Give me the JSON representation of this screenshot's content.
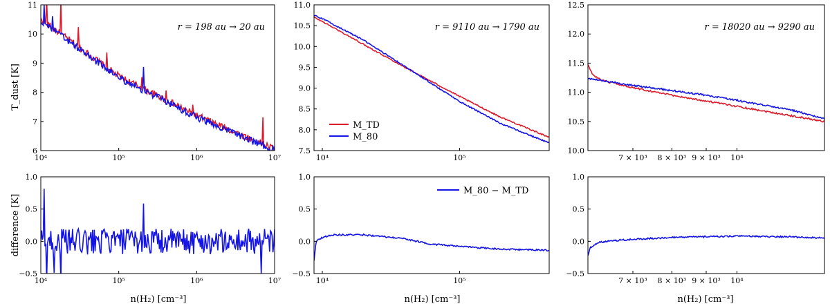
{
  "figure": {
    "ylabel_top": "T_dust [K]",
    "ylabel_bottom": "difference [K]",
    "xlabel": "n(H₂) [cm⁻³]",
    "colors": {
      "M_TD": "#dc1c2c",
      "M_80": "#1414e6"
    },
    "legend_top": [
      "M_TD",
      "M_80"
    ],
    "legend_bottom": [
      "M_80 − M_TD"
    ]
  },
  "chart_data": [
    {
      "type": "line",
      "panel": "top-left",
      "annotation": "r = 198 au → 20 au",
      "xscale": "log",
      "xlim": [
        10000,
        10000000
      ],
      "ylim": [
        6,
        11
      ],
      "xticks": [
        "10⁴",
        "10⁵",
        "10⁶",
        "10⁷"
      ],
      "yticks": [
        "6",
        "7",
        "8",
        "9",
        "10",
        "11"
      ],
      "series": [
        {
          "name": "M_TD",
          "trend": {
            "x": [
              10000,
              100000,
              1000000,
              10000000
            ],
            "y": [
              10.5,
              8.55,
              7.2,
              6.05
            ]
          },
          "noise": 0.12,
          "spikes": [
            {
              "x": 12000,
              "dy": 0.8
            },
            {
              "x": 18000,
              "dy": 1.2
            },
            {
              "x": 30000,
              "dy": 0.6
            },
            {
              "x": 70000,
              "dy": 0.4
            },
            {
              "x": 200000,
              "dy": 0.45
            },
            {
              "x": 400000,
              "dy": 0.3
            },
            {
              "x": 900000,
              "dy": 0.35
            },
            {
              "x": 7000000,
              "dy": 0.85
            }
          ]
        },
        {
          "name": "M_80",
          "trend": {
            "x": [
              10000,
              100000,
              1000000,
              10000000
            ],
            "y": [
              10.45,
              8.5,
              7.15,
              6.0
            ]
          },
          "noise": 0.12,
          "spikes": [
            {
              "x": 11000,
              "dy": 0.7
            },
            {
              "x": 14000,
              "dy": 0.5
            },
            {
              "x": 210000,
              "dy": 0.75
            }
          ]
        }
      ]
    },
    {
      "type": "line",
      "panel": "top-middle",
      "annotation": "r = 9110 au → 1790 au",
      "xscale": "log",
      "xlim": [
        8700,
        450000
      ],
      "ylim": [
        7.5,
        11.0
      ],
      "xticks": [
        "10⁴",
        "10⁵"
      ],
      "yticks": [
        "7.5",
        "8.0",
        "8.5",
        "9.0",
        "9.5",
        "10.0",
        "10.5",
        "11.0"
      ],
      "series": [
        {
          "name": "M_TD",
          "trend": {
            "x": [
              8700,
              10000,
              20000,
              40000,
              100000,
              200000,
              450000
            ],
            "y": [
              10.7,
              10.6,
              10.05,
              9.5,
              8.8,
              8.3,
              7.82
            ]
          },
          "noise": 0.015
        },
        {
          "name": "M_80",
          "trend": {
            "x": [
              8700,
              10000,
              20000,
              40000,
              100000,
              200000,
              450000
            ],
            "y": [
              10.75,
              10.67,
              10.15,
              9.52,
              8.68,
              8.15,
              7.68
            ]
          },
          "noise": 0.015
        }
      ]
    },
    {
      "type": "line",
      "panel": "top-right",
      "annotation": "r = 18020 au → 9290 au",
      "xscale": "log",
      "xlim": [
        6000,
        13500
      ],
      "ylim": [
        10.0,
        12.5
      ],
      "xticks": [
        "7 × 10³",
        "8 × 10³",
        "9 × 10³",
        "10⁴"
      ],
      "yticks": [
        "10.0",
        "10.5",
        "11.0",
        "11.5",
        "12.0",
        "12.5"
      ],
      "series": [
        {
          "name": "M_TD",
          "trend": {
            "x": [
              6000,
              6100,
              6300,
              7000,
              8000,
              9000,
              10000,
              12000,
              13500
            ],
            "y": [
              11.47,
              11.3,
              11.2,
              11.08,
              10.95,
              10.85,
              10.76,
              10.6,
              10.5
            ]
          },
          "noise": 0.015
        },
        {
          "name": "M_80",
          "trend": {
            "x": [
              6000,
              6300,
              7000,
              8000,
              9000,
              10000,
              12000,
              13500
            ],
            "y": [
              11.24,
              11.2,
              11.12,
              11.03,
              10.95,
              10.86,
              10.7,
              10.55
            ]
          },
          "noise": 0.015
        }
      ]
    },
    {
      "type": "line",
      "panel": "bottom-left",
      "xscale": "log",
      "xlim": [
        10000,
        10000000
      ],
      "ylim": [
        -0.5,
        1.0
      ],
      "xticks": [
        "10⁴",
        "10⁵",
        "10⁶",
        "10⁷"
      ],
      "yticks": [
        "−0.5",
        "0.0",
        "0.5",
        "1.0"
      ],
      "series": [
        {
          "name": "M_80 − M_TD",
          "trend": {
            "x": [
              10000,
              10000000
            ],
            "y": [
              0.0,
              0.0
            ]
          },
          "noise": 0.2,
          "spikes": [
            {
              "x": 11000,
              "dy": 1.0
            },
            {
              "x": 12000,
              "dy": -0.55
            },
            {
              "x": 15000,
              "dy": -0.5
            },
            {
              "x": 18000,
              "dy": -0.55
            },
            {
              "x": 40000,
              "dy": -0.35
            },
            {
              "x": 210000,
              "dy": 0.65
            },
            {
              "x": 6800000,
              "dy": -0.5
            }
          ]
        }
      ]
    },
    {
      "type": "line",
      "panel": "bottom-middle",
      "xscale": "log",
      "xlim": [
        8700,
        450000
      ],
      "ylim": [
        -0.5,
        1.0
      ],
      "xticks": [
        "10⁴",
        "10⁵"
      ],
      "yticks": [
        "−0.5",
        "0.0",
        "0.5",
        "1.0"
      ],
      "series": [
        {
          "name": "M_80 − M_TD",
          "trend": {
            "x": [
              8700,
              9000,
              10000,
              12000,
              20000,
              40000,
              60000,
              100000,
              200000,
              450000
            ],
            "y": [
              -0.3,
              0.0,
              0.06,
              0.1,
              0.1,
              0.04,
              -0.04,
              -0.08,
              -0.12,
              -0.14
            ]
          },
          "noise": 0.012
        }
      ]
    },
    {
      "type": "line",
      "panel": "bottom-right",
      "xscale": "log",
      "xlim": [
        6000,
        13500
      ],
      "ylim": [
        -0.5,
        1.0
      ],
      "xticks": [
        "7 × 10³",
        "8 × 10³",
        "9 × 10³",
        "10⁴"
      ],
      "yticks": [
        "−0.5",
        "0.0",
        "0.5",
        "1.0"
      ],
      "series": [
        {
          "name": "M_80 − M_TD",
          "trend": {
            "x": [
              6000,
              6050,
              6200,
              6500,
              7000,
              8000,
              10000,
              12000,
              13500
            ],
            "y": [
              -0.22,
              -0.1,
              -0.02,
              0.01,
              0.03,
              0.06,
              0.08,
              0.07,
              0.05
            ]
          },
          "noise": 0.012
        }
      ]
    }
  ]
}
